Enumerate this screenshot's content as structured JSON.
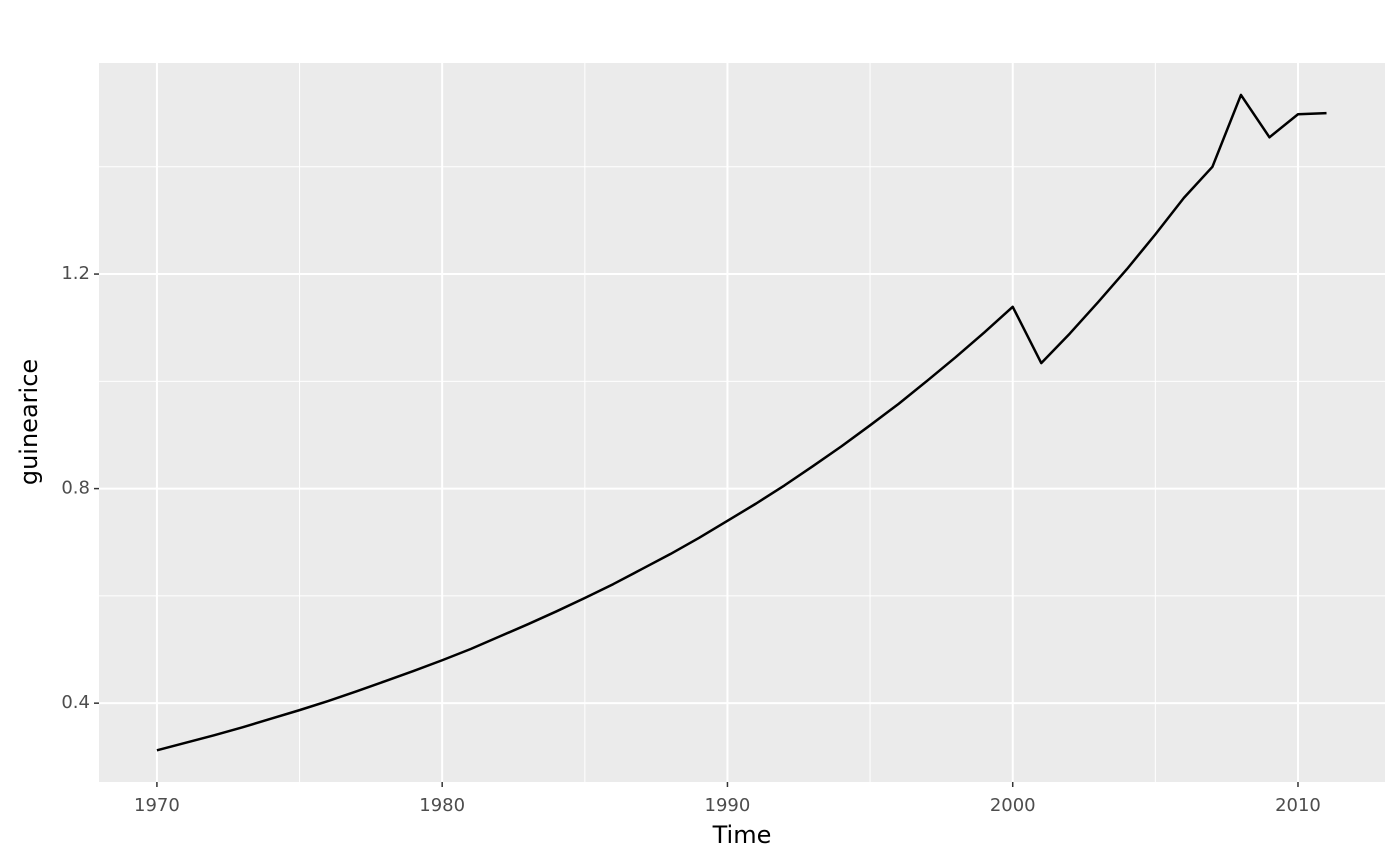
{
  "chart_data": {
    "type": "line",
    "x": [
      1970,
      1971,
      1972,
      1973,
      1974,
      1975,
      1976,
      1977,
      1978,
      1979,
      1980,
      1981,
      1982,
      1983,
      1984,
      1985,
      1986,
      1987,
      1988,
      1989,
      1990,
      1991,
      1992,
      1993,
      1994,
      1995,
      1996,
      1997,
      1998,
      1999,
      2000,
      2001,
      2002,
      2003,
      2004,
      2005,
      2006,
      2007,
      2008,
      2009,
      2010,
      2011
    ],
    "series": [
      {
        "name": "guinearice",
        "color": "#000000",
        "values": [
          0.312,
          0.326,
          0.34,
          0.355,
          0.371,
          0.387,
          0.404,
          0.422,
          0.441,
          0.46,
          0.48,
          0.501,
          0.524,
          0.547,
          0.571,
          0.596,
          0.622,
          0.65,
          0.678,
          0.708,
          0.74,
          0.772,
          0.806,
          0.842,
          0.879,
          0.918,
          0.958,
          1.001,
          1.045,
          1.091,
          1.139,
          1.034,
          1.089,
          1.148,
          1.209,
          1.274,
          1.342,
          1.4,
          1.534,
          1.455,
          1.498,
          1.5
        ]
      }
    ],
    "x_label": "Time",
    "y_label": "guinearice",
    "xlim": [
      1967.97,
      2013.05
    ],
    "xticks": [
      1970,
      1980,
      1990,
      2000,
      2010
    ],
    "ylim": [
      0.253,
      1.5935
    ],
    "yticks": [
      {
        "value": 0.4,
        "label": "0.4"
      },
      {
        "value": 0.8,
        "label": "0.8"
      },
      {
        "value": 1.2,
        "label": "1.2"
      }
    ],
    "grid": true
  }
}
